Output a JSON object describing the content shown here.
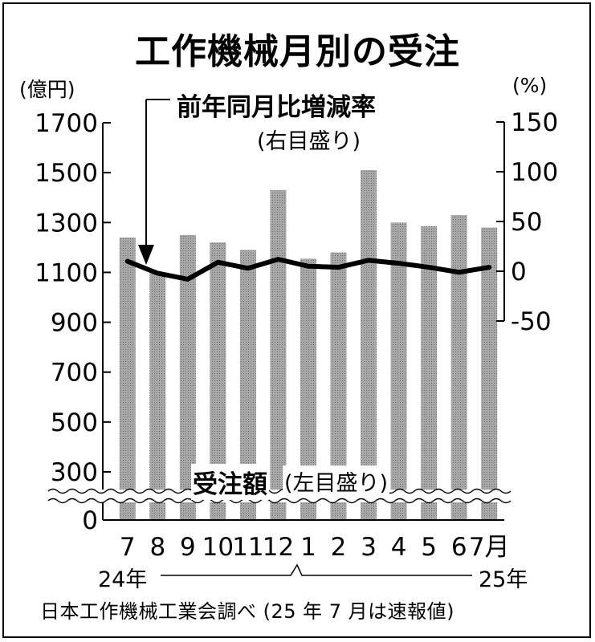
{
  "title": "工作機械月別の受注",
  "units": {
    "left": "(億円)",
    "right": "(%)"
  },
  "annotations": {
    "line_label": "前年同月比増減率",
    "line_note": "(右目盛り)",
    "bar_label": "受注額",
    "bar_note": "(左目盛り)"
  },
  "years": {
    "start": "24年",
    "end": "25年"
  },
  "source": "日本工作機械工業会調べ (25 年 7 月は速報値)",
  "colors": {
    "bar": "#a8a8a8",
    "line": "#000000",
    "background": "#ffffff"
  },
  "chart_data": {
    "type": "bar+line",
    "categories": [
      "7",
      "8",
      "9",
      "10",
      "11",
      "12",
      "1",
      "2",
      "3",
      "4",
      "5",
      "6",
      "7月"
    ],
    "left_axis": {
      "ticks": [
        "1700",
        "1500",
        "1300",
        "1100",
        "900",
        "700",
        "500",
        "300",
        "0"
      ],
      "tick_values": [
        1700,
        1500,
        1300,
        1100,
        900,
        700,
        500,
        300,
        0
      ],
      "ylim": [
        0,
        1700
      ],
      "axis_break": "between 0 and 300"
    },
    "right_axis": {
      "ticks": [
        "150",
        "100",
        "50",
        "0",
        "-50"
      ],
      "tick_values": [
        150,
        100,
        50,
        0,
        -50
      ],
      "ylim": [
        -50,
        150
      ]
    },
    "series": [
      {
        "name": "受注額",
        "type": "bar",
        "axis": "left",
        "values": [
          1240,
          1100,
          1250,
          1220,
          1190,
          1430,
          1155,
          1180,
          1510,
          1300,
          1285,
          1330,
          1280
        ]
      },
      {
        "name": "前年同月比増減率",
        "type": "line",
        "axis": "right",
        "values": [
          10,
          -2,
          -8,
          9,
          3,
          12,
          5,
          4,
          11,
          8,
          4,
          -1,
          4
        ]
      }
    ],
    "grid": false,
    "legend": "none"
  }
}
